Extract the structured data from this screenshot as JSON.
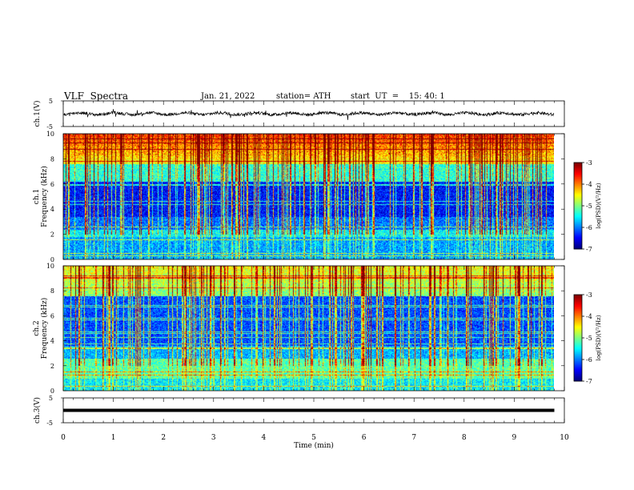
{
  "header": {
    "title": "VLF  Spectra",
    "date": "Jan. 21, 2022",
    "station": "station= ATH",
    "start": "start  UT  =    15: 40: 1"
  },
  "chart_data": [
    {
      "type": "line",
      "name": "ch1-waveform",
      "ylabel": "ch.1(V)",
      "ylim": [
        -5,
        5
      ],
      "yticks": [
        "5",
        "-5"
      ],
      "xlim": [
        0,
        10
      ],
      "trace_max_time": 9.8,
      "noise_amplitude": 0.6,
      "color": "#000000"
    },
    {
      "type": "heatmap",
      "name": "ch1-spectrogram",
      "ylabel_1": "ch.1",
      "ylabel_2": "Frequency  (kHz)",
      "ylim": [
        0,
        10
      ],
      "yticks": [
        "0",
        "2",
        "4",
        "6",
        "8",
        "10"
      ],
      "xlim": [
        0,
        10
      ],
      "colorbar": {
        "label": "log(PSD)(V²/Hz)",
        "range": [
          -7,
          -3
        ],
        "ticks": [
          "-3",
          "-4",
          "-5",
          "-6",
          "-7"
        ]
      }
    },
    {
      "type": "heatmap",
      "name": "ch2-spectrogram",
      "ylabel_1": "ch.2",
      "ylabel_2": "Frequency  (kHz)",
      "ylim": [
        0,
        10
      ],
      "yticks": [
        "0",
        "2",
        "4",
        "6",
        "8",
        "10"
      ],
      "xlim": [
        0,
        10
      ],
      "colorbar": {
        "label": "log(PSD)(V²/Hz)",
        "range": [
          -7,
          -3
        ],
        "ticks": [
          "-3",
          "-4",
          "-5",
          "-6",
          "-7"
        ]
      }
    },
    {
      "type": "line",
      "name": "ch3-waveform",
      "ylabel": "ch.3(V)",
      "ylim": [
        -5,
        5
      ],
      "yticks": [
        "5",
        "-5"
      ],
      "xlim": [
        0,
        10
      ],
      "trace_value": 0,
      "trace_max_time": 9.8,
      "color": "#000000"
    }
  ],
  "xaxis": {
    "label": "Time  (min)",
    "ticks": [
      "0",
      "1",
      "2",
      "3",
      "4",
      "5",
      "6",
      "7",
      "8",
      "9",
      "10"
    ]
  }
}
